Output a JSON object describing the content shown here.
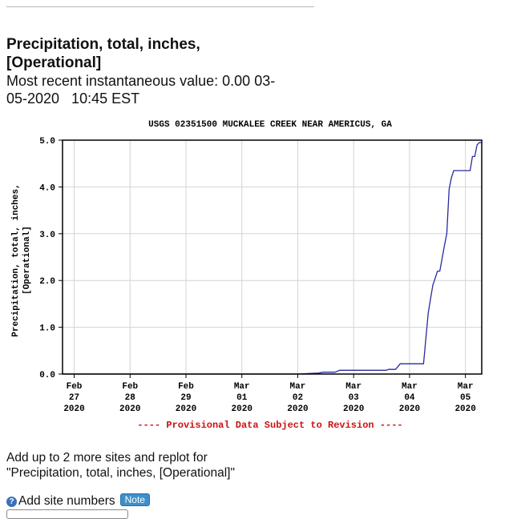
{
  "page": {
    "heading_line1": "Precipitation, total, inches,",
    "heading_line2": "[Operational]",
    "recent_label": "Most recent instantaneous value: 0.00 03-",
    "recent_timestamp": "05-2020   10:45 EST",
    "addup_line1": "Add up to 2 more sites and replot for",
    "addup_line2": "\"Precipitation, total, inches, [Operational]\"",
    "help_icon": "question-mark-icon",
    "add_site_label": "Add site numbers",
    "note_label": "Note"
  },
  "colors": {
    "series": "#2a2aa0",
    "provisional": "#cc1111",
    "grid": "#d4d4d4"
  },
  "chart_data": {
    "type": "line",
    "title": "USGS 02351500 MUCKALEE CREEK NEAR AMERICUS, GA",
    "ylabel_line1": "Precipitation, total, inches,",
    "ylabel_line2": "[Operational]",
    "ylim": [
      0,
      5.0
    ],
    "yticks": [
      0,
      1,
      2,
      3,
      4,
      5
    ],
    "ytick_labels": [
      "0.0",
      "1.0",
      "2.0",
      "3.0",
      "4.0",
      "5.0"
    ],
    "xlim": [
      "2020-02-26T19:00",
      "2020-03-05T07:00"
    ],
    "xticks": [
      {
        "date": "2020-02-27",
        "line1": "Feb",
        "line2": "27",
        "line3": "2020"
      },
      {
        "date": "2020-02-28",
        "line1": "Feb",
        "line2": "28",
        "line3": "2020"
      },
      {
        "date": "2020-02-29",
        "line1": "Feb",
        "line2": "29",
        "line3": "2020"
      },
      {
        "date": "2020-03-01",
        "line1": "Mar",
        "line2": "01",
        "line3": "2020"
      },
      {
        "date": "2020-03-02",
        "line1": "Mar",
        "line2": "02",
        "line3": "2020"
      },
      {
        "date": "2020-03-03",
        "line1": "Mar",
        "line2": "03",
        "line3": "2020"
      },
      {
        "date": "2020-03-04",
        "line1": "Mar",
        "line2": "04",
        "line3": "2020"
      },
      {
        "date": "2020-03-05",
        "line1": "Mar",
        "line2": "05",
        "line3": "2020"
      }
    ],
    "grid": true,
    "footnote": "---- Provisional Data Subject to Revision ----",
    "series": [
      {
        "x": [
          "2020-02-26T19:00",
          "2020-03-02T00:00",
          "2020-03-02T09:00",
          "2020-03-02T11:00",
          "2020-03-02T16:00",
          "2020-03-02T18:00",
          "2020-03-03T14:00",
          "2020-03-03T15:00",
          "2020-03-03T18:00",
          "2020-03-03T20:00",
          "2020-03-04T02:00",
          "2020-03-04T06:00",
          "2020-03-04T08:00",
          "2020-03-04T08:30",
          "2020-03-04T10:00",
          "2020-03-04T12:00",
          "2020-03-04T13:00",
          "2020-03-04T15:00",
          "2020-03-04T16:00",
          "2020-03-04T17:00",
          "2020-03-04T18:00",
          "2020-03-04T19:00",
          "2020-03-04T20:00",
          "2020-03-04T22:00",
          "2020-03-04T23:00",
          "2020-03-05T02:00",
          "2020-03-05T03:00",
          "2020-03-05T04:00",
          "2020-03-05T05:00",
          "2020-03-05T06:00",
          "2020-03-05T07:00"
        ],
        "y": [
          0.0,
          0.0,
          0.02,
          0.04,
          0.04,
          0.08,
          0.08,
          0.1,
          0.1,
          0.22,
          0.22,
          0.22,
          1.3,
          1.45,
          1.9,
          2.2,
          2.2,
          2.75,
          3.0,
          3.95,
          4.2,
          4.35,
          4.35,
          4.35,
          4.35,
          4.35,
          4.65,
          4.65,
          4.9,
          4.95,
          4.95
        ]
      }
    ]
  }
}
